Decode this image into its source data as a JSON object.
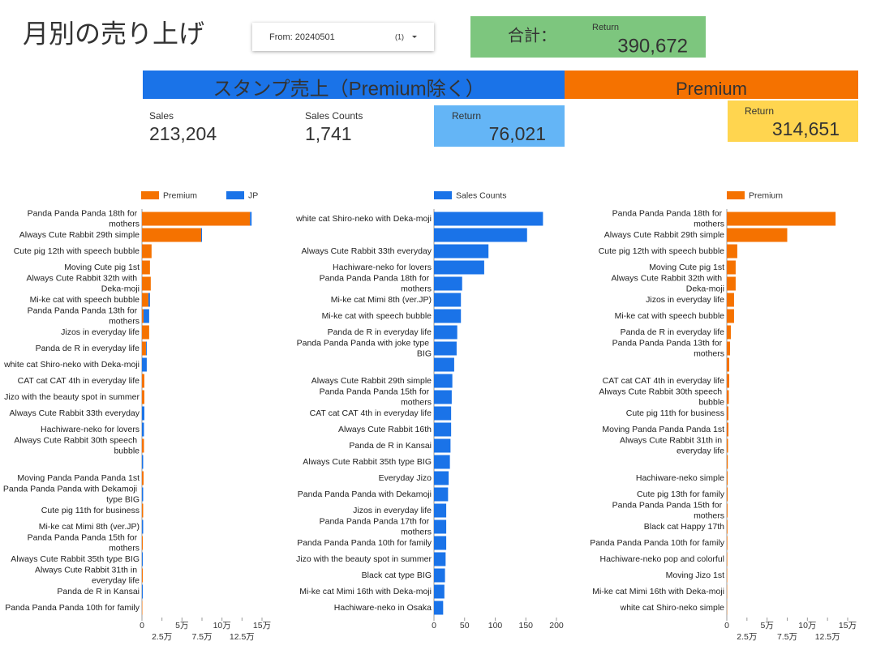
{
  "header": {
    "title": "月別の売り上げ"
  },
  "filter": {
    "label": "From: 20240501",
    "count": "(1)"
  },
  "total": {
    "label": "合計：",
    "sublabel": "Return",
    "value": "390,672"
  },
  "sections": [
    "スタンプ売上（Premium除く）",
    "Premium"
  ],
  "kpis": {
    "sales": {
      "label": "Sales",
      "value": "213,204"
    },
    "sales_counts": {
      "label": "Sales Counts",
      "value": "1,741"
    },
    "return": {
      "label": "Return",
      "value": "76,021"
    },
    "premium_return": {
      "label": "Return",
      "value": "314,651"
    }
  },
  "chart_data": [
    {
      "type": "bar",
      "orientation": "horizontal",
      "stacked": true,
      "categories": [
        "Panda Panda Panda 18th for mothers",
        "Always Cute Rabbit 29th simple",
        "Cute pig 12th with speech bubble",
        "Moving Cute pig 1st",
        "Always Cute Rabbit 32th with Deka-moji",
        "Mi-ke cat with speech bubble",
        "Panda Panda Panda 13th for mothers",
        "Jizos in everyday life",
        "Panda de R in everyday life",
        "white cat Shiro-neko with Deka-moji",
        "CAT cat CAT 4th in everyday life",
        "Jizo with the beauty spot in summer",
        "Always Cute Rabbit 33th everyday",
        "Hachiware-neko for lovers",
        "Always Cute Rabbit 30th speech bubble",
        null,
        "Moving Panda Panda Panda 1st",
        "Panda Panda Panda with Dekamoji type BIG",
        "Cute pig 11th for business",
        "Mi-ke cat Mimi 8th (ver.JP)",
        "Panda Panda Panda 15th for mothers",
        "Always Cute Rabbit 35th type BIG",
        "Always Cute Rabbit 31th in everyday life",
        "Panda de R in Kansai",
        "Panda Panda Panda 10th for family"
      ],
      "series": [
        {
          "name": "Premium",
          "color": "#f57200",
          "values": [
            135000,
            74000,
            12000,
            10000,
            11000,
            8000,
            2000,
            9000,
            5000,
            0,
            3000,
            3000,
            0,
            0,
            2500,
            0,
            2000,
            0,
            1500,
            0,
            1000,
            0,
            1000,
            0,
            500
          ]
        },
        {
          "name": "JP",
          "color": "#1a73e8",
          "values": [
            2000,
            1000,
            0,
            0,
            0,
            2000,
            7000,
            0,
            1000,
            6000,
            0,
            0,
            3000,
            2500,
            0,
            1500,
            0,
            1500,
            0,
            1500,
            0,
            1000,
            0,
            1000,
            0
          ]
        }
      ],
      "xlim": [
        0,
        150000
      ],
      "xticks": [
        0,
        {
          "value": 25000,
          "label": "2.5万"
        },
        {
          "value": 50000,
          "label": "5万"
        },
        {
          "value": 75000,
          "label": "7.5万"
        },
        {
          "value": 100000,
          "label": "10万"
        },
        {
          "value": 125000,
          "label": "12.5万"
        },
        {
          "value": 150000,
          "label": "15万"
        }
      ]
    },
    {
      "type": "bar",
      "orientation": "horizontal",
      "stacked": false,
      "categories": [
        "white cat Shiro-neko with Deka-moji",
        null,
        "Always Cute Rabbit 33th everyday",
        "Hachiware-neko for lovers",
        "Panda Panda Panda 18th for mothers",
        "Mi-ke cat Mimi 8th (ver.JP)",
        "Mi-ke cat with speech bubble",
        "Panda de R in everyday life",
        "Panda Panda Panda with joke type BIG",
        null,
        "Always Cute Rabbit 29th simple",
        "Panda Panda Panda 15th for mothers",
        "CAT cat CAT 4th in everyday life",
        "Always Cute Rabbit 16th",
        "Panda de R in Kansai",
        "Always Cute Rabbit 35th type BIG",
        "Everyday Jizo",
        "Panda Panda Panda with Dekamoji",
        "Jizos in everyday life",
        "Panda Panda Panda 17th for mothers",
        "Panda Panda Panda 10th for family",
        "Jizo with the beauty spot in summer",
        "Black cat type BIG",
        "Mi-ke cat Mimi 16th with Deka-moji",
        "Hachiware-neko in Osaka"
      ],
      "series": [
        {
          "name": "Sales Counts",
          "color": "#1a73e8",
          "values": [
            178,
            152,
            89,
            82,
            46,
            44,
            44,
            38,
            37,
            33,
            30,
            29,
            28,
            28,
            27,
            26,
            24,
            23,
            20,
            20,
            20,
            19,
            18,
            17,
            15
          ]
        }
      ],
      "xlim": [
        0,
        200
      ],
      "xticks": [
        0,
        50,
        100,
        150,
        200
      ]
    },
    {
      "type": "bar",
      "orientation": "horizontal",
      "stacked": false,
      "categories": [
        "Panda Panda Panda 18th for mothers",
        "Always Cute Rabbit 29th simple",
        "Cute pig 12th with speech bubble",
        "Moving Cute pig 1st",
        "Always Cute Rabbit 32th with Deka-moji",
        "Jizos in everyday life",
        "Mi-ke cat with speech bubble",
        "Panda de R in everyday life",
        "Panda Panda Panda 13th for mothers",
        null,
        "CAT cat CAT 4th in everyday life",
        "Always Cute Rabbit 30th speech bubble",
        "Cute pig 11th for business",
        "Moving Panda Panda Panda 1st",
        "Always Cute Rabbit 31th in everyday life",
        null,
        "Hachiware-neko simple",
        "Cute pig 13th for family",
        "Panda Panda Panda 15th for mothers",
        "Black cat Happy 17th",
        "Panda Panda Panda 10th for family",
        "Hachiware-neko pop and colorful",
        "Moving Jizo 1st",
        "Mi-ke cat Mimi 16th with Deka-moji",
        "white cat Shiro-neko simple"
      ],
      "series": [
        {
          "name": "Premium",
          "color": "#f57200",
          "values": [
            135000,
            75000,
            13000,
            11000,
            11000,
            9000,
            9000,
            5000,
            4000,
            3000,
            3000,
            2500,
            2000,
            2000,
            1500,
            1200,
            1000,
            1000,
            900,
            800,
            700,
            600,
            500,
            400,
            300
          ]
        }
      ],
      "xlim": [
        0,
        150000
      ],
      "xticks": [
        0,
        {
          "value": 25000,
          "label": "2.5万"
        },
        {
          "value": 50000,
          "label": "5万"
        },
        {
          "value": 75000,
          "label": "7.5万"
        },
        {
          "value": 100000,
          "label": "10万"
        },
        {
          "value": 125000,
          "label": "12.5万"
        },
        {
          "value": 150000,
          "label": "15万"
        }
      ]
    }
  ]
}
